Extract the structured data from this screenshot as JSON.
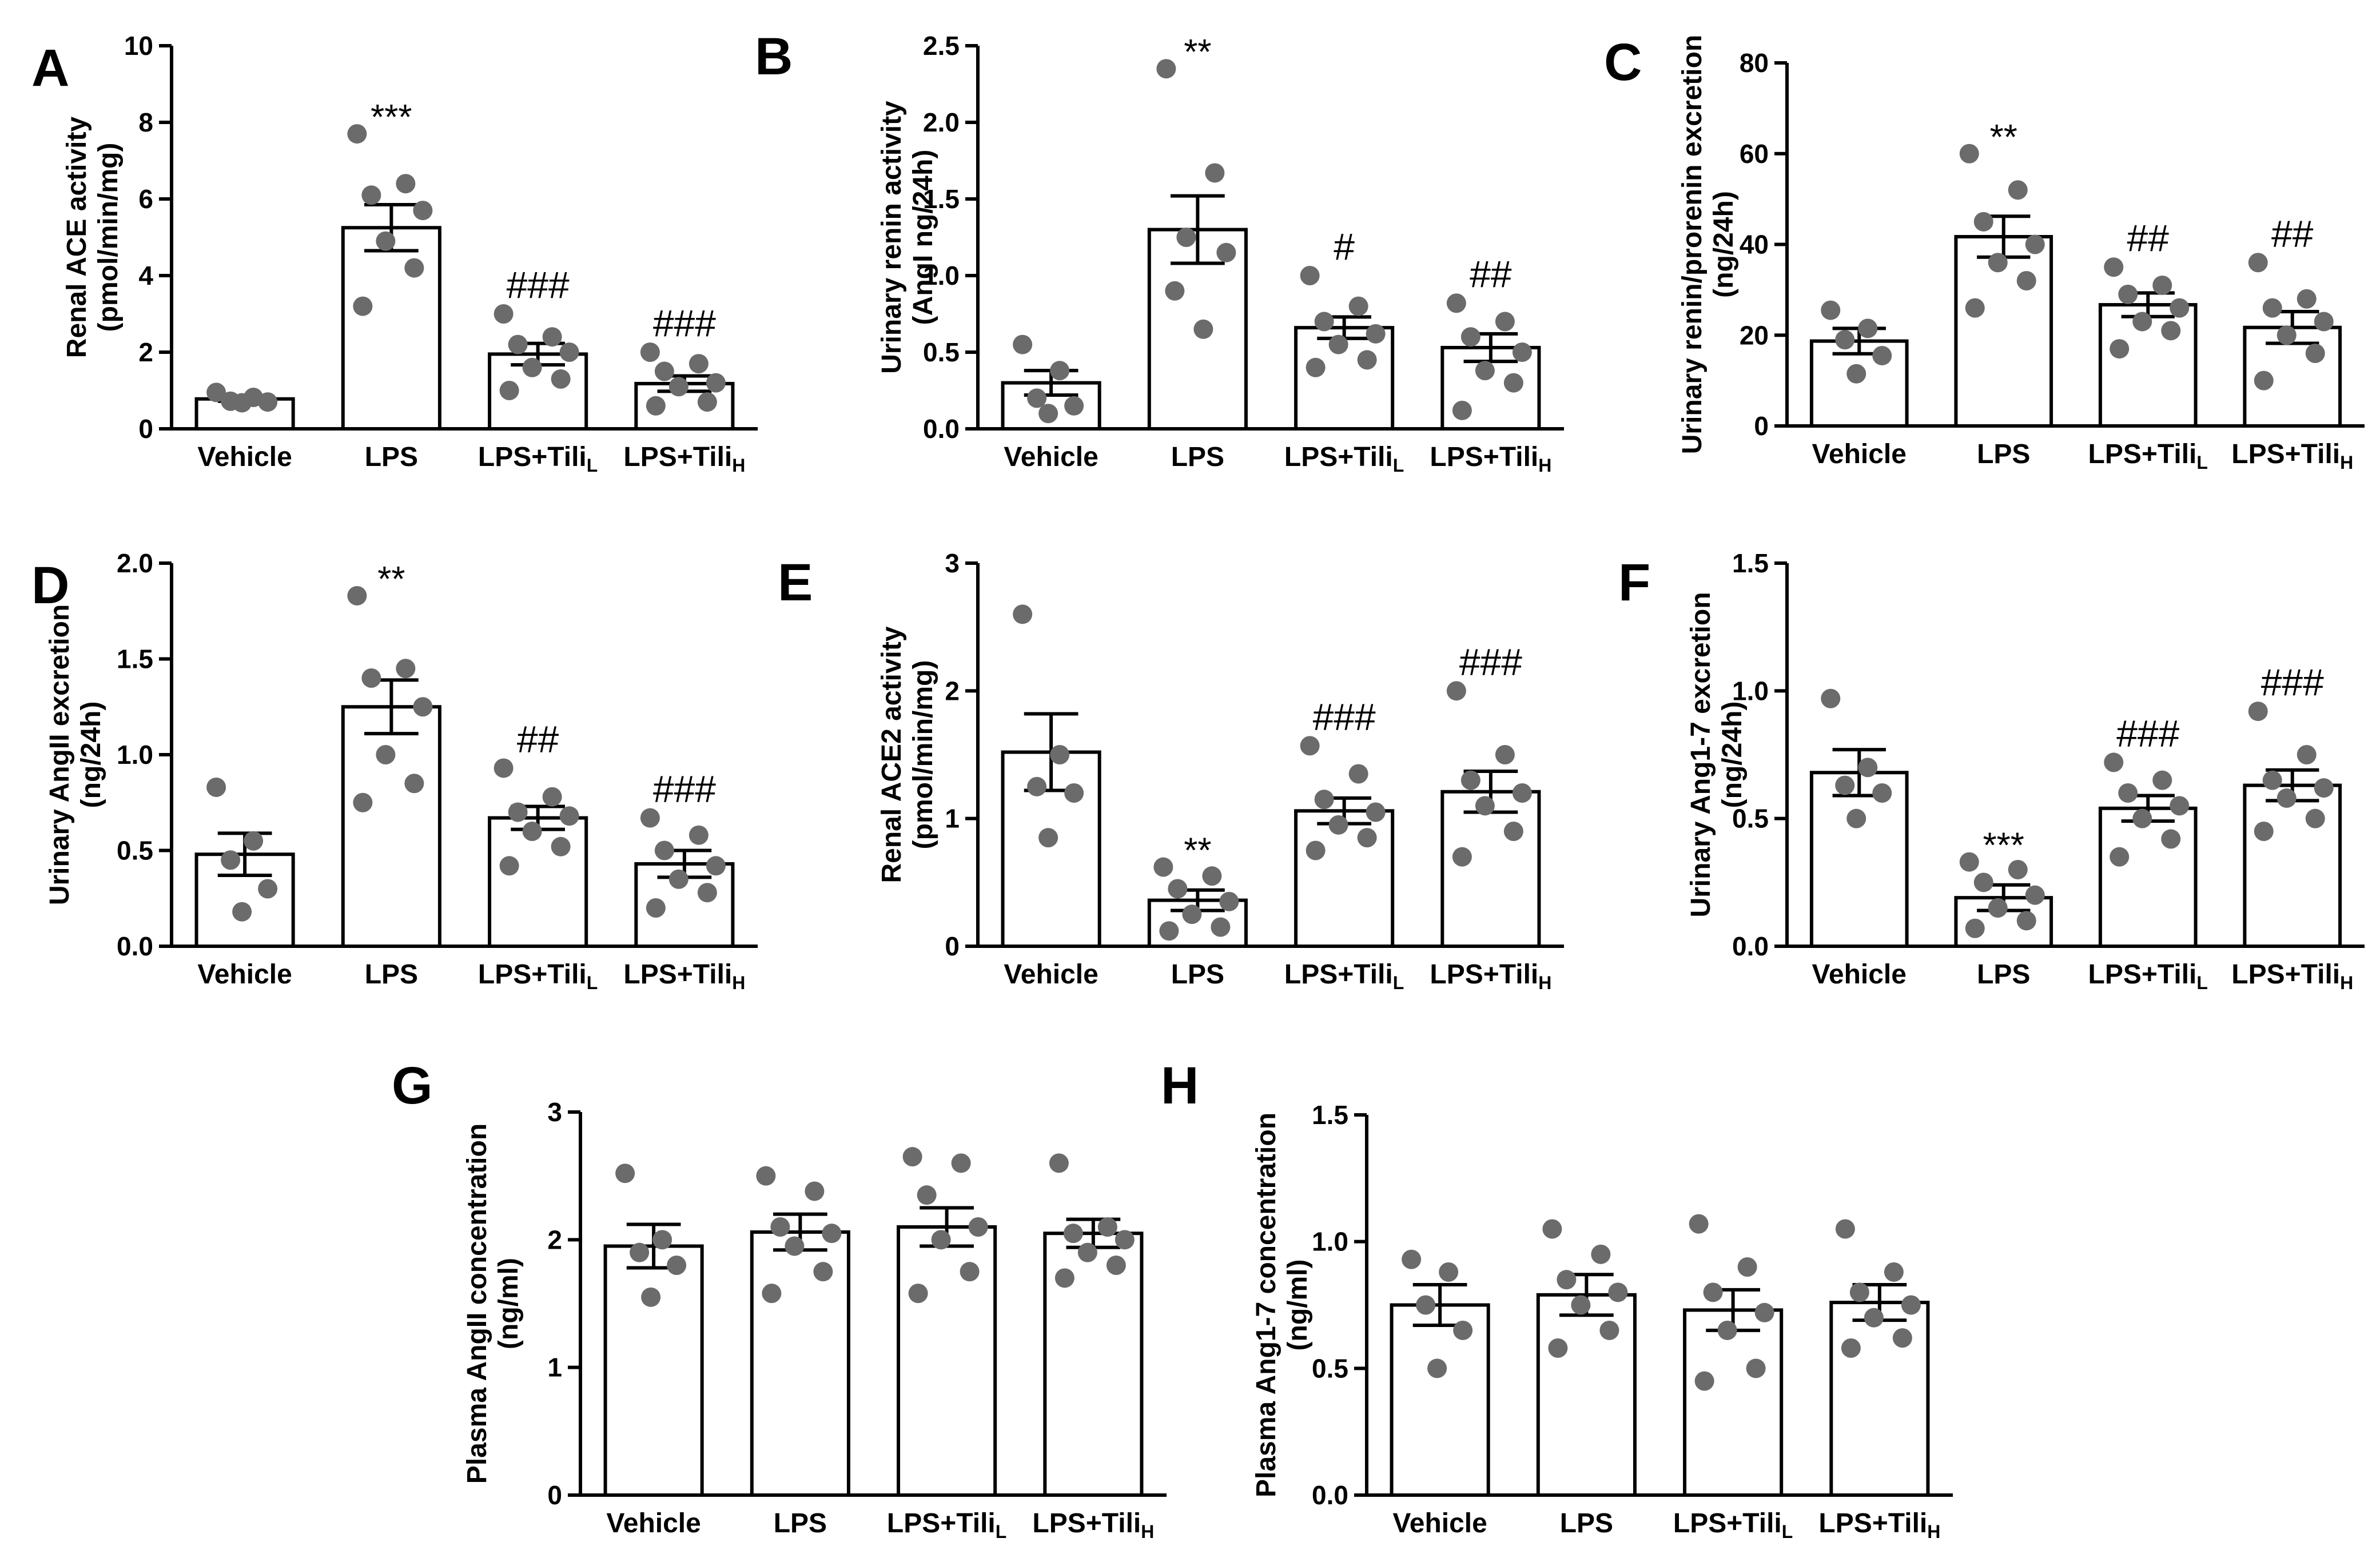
{
  "chart_data": [
    {
      "panel": "A",
      "type": "bar",
      "ylabel_lines": [
        "Renal ACE activity",
        "(pmol/min/mg)"
      ],
      "ylim": [
        0,
        10
      ],
      "yticks": [
        0,
        2,
        4,
        6,
        8,
        10
      ],
      "tick_labels": [
        "0",
        "2",
        "4",
        "6",
        "8",
        "10"
      ],
      "categories": [
        {
          "main": "Vehicle",
          "sub": ""
        },
        {
          "main": "LPS",
          "sub": ""
        },
        {
          "main": "LPS+Tili",
          "sub": "L"
        },
        {
          "main": "LPS+Tili",
          "sub": "H"
        }
      ],
      "values": [
        0.78,
        5.25,
        1.95,
        1.18
      ],
      "errors": [
        0.06,
        0.6,
        0.28,
        0.2
      ],
      "points": [
        [
          0.95,
          0.82,
          0.72,
          0.7,
          0.68
        ],
        [
          7.7,
          6.4,
          6.1,
          5.7,
          4.9,
          4.2,
          3.2
        ],
        [
          3.0,
          2.4,
          2.2,
          2.0,
          1.6,
          1.3,
          1.0
        ],
        [
          2.0,
          1.7,
          1.5,
          1.2,
          1.1,
          0.7,
          0.6
        ]
      ],
      "sig": [
        "",
        "***",
        "###",
        "###"
      ]
    },
    {
      "panel": "B",
      "type": "bar",
      "ylabel_lines": [
        "Urinary renin activity",
        "(AngI ng/24h)"
      ],
      "ylim": [
        0,
        2.5
      ],
      "yticks": [
        0,
        0.5,
        1.0,
        1.5,
        2.0,
        2.5
      ],
      "tick_labels": [
        "0.0",
        "0.5",
        "1.0",
        "1.5",
        "2.0",
        "2.5"
      ],
      "categories": [
        {
          "main": "Vehicle",
          "sub": ""
        },
        {
          "main": "LPS",
          "sub": ""
        },
        {
          "main": "LPS+Tili",
          "sub": "L"
        },
        {
          "main": "LPS+Tili",
          "sub": "H"
        }
      ],
      "values": [
        0.3,
        1.3,
        0.66,
        0.53
      ],
      "errors": [
        0.08,
        0.22,
        0.07,
        0.09
      ],
      "points": [
        [
          0.55,
          0.38,
          0.2,
          0.15,
          0.1
        ],
        [
          2.35,
          1.67,
          1.25,
          1.15,
          0.9,
          0.65
        ],
        [
          1.0,
          0.8,
          0.7,
          0.62,
          0.55,
          0.45,
          0.4
        ],
        [
          0.82,
          0.7,
          0.6,
          0.5,
          0.38,
          0.3,
          0.12
        ]
      ],
      "sig": [
        "",
        "**",
        "#",
        "##"
      ]
    },
    {
      "panel": "C",
      "type": "bar",
      "ylabel_lines": [
        "Urinary renin/prorenin excretion",
        "(ng/24h)"
      ],
      "ylim": [
        0,
        80
      ],
      "yticks": [
        0,
        20,
        40,
        60,
        80
      ],
      "tick_labels": [
        "0",
        "20",
        "40",
        "60",
        "80"
      ],
      "categories": [
        {
          "main": "Vehicle",
          "sub": ""
        },
        {
          "main": "LPS",
          "sub": ""
        },
        {
          "main": "LPS+Tili",
          "sub": "L"
        },
        {
          "main": "LPS+Tili",
          "sub": "H"
        }
      ],
      "values": [
        18.7,
        41.7,
        26.7,
        21.7
      ],
      "errors": [
        2.8,
        4.5,
        2.6,
        3.5
      ],
      "points": [
        [
          25.5,
          21.5,
          19,
          15.5,
          11.5
        ],
        [
          60,
          52,
          45,
          40,
          36,
          32,
          26
        ],
        [
          35,
          31,
          29,
          26,
          23,
          21,
          17
        ],
        [
          36,
          28,
          26,
          23,
          20,
          16,
          10
        ]
      ],
      "sig": [
        "",
        "**",
        "##",
        "##"
      ]
    },
    {
      "panel": "D",
      "type": "bar",
      "ylabel_lines": [
        "Urinary AngII excretion",
        "(ng/24h)"
      ],
      "ylim": [
        0,
        2.0
      ],
      "yticks": [
        0,
        0.5,
        1.0,
        1.5,
        2.0
      ],
      "tick_labels": [
        "0.0",
        "0.5",
        "1.0",
        "1.5",
        "2.0"
      ],
      "categories": [
        {
          "main": "Vehicle",
          "sub": ""
        },
        {
          "main": "LPS",
          "sub": ""
        },
        {
          "main": "LPS+Tili",
          "sub": "L"
        },
        {
          "main": "LPS+Tili",
          "sub": "H"
        }
      ],
      "values": [
        0.48,
        1.25,
        0.67,
        0.43
      ],
      "errors": [
        0.11,
        0.14,
        0.06,
        0.07
      ],
      "points": [
        [
          0.83,
          0.55,
          0.45,
          0.3,
          0.18
        ],
        [
          1.83,
          1.45,
          1.4,
          1.25,
          1.0,
          0.85,
          0.75
        ],
        [
          0.93,
          0.78,
          0.7,
          0.68,
          0.6,
          0.52,
          0.42
        ],
        [
          0.67,
          0.58,
          0.5,
          0.42,
          0.35,
          0.28,
          0.2
        ]
      ],
      "sig": [
        "",
        "**",
        "##",
        "###"
      ]
    },
    {
      "panel": "E",
      "type": "bar",
      "ylabel_lines": [
        "Renal ACE2 activity",
        "(pmol/min/mg)"
      ],
      "ylim": [
        0,
        3
      ],
      "yticks": [
        0,
        1,
        2,
        3
      ],
      "tick_labels": [
        "0",
        "1",
        "2",
        "3"
      ],
      "categories": [
        {
          "main": "Vehicle",
          "sub": ""
        },
        {
          "main": "LPS",
          "sub": ""
        },
        {
          "main": "LPS+Tili",
          "sub": "L"
        },
        {
          "main": "LPS+Tili",
          "sub": "H"
        }
      ],
      "values": [
        1.52,
        0.36,
        1.06,
        1.21
      ],
      "errors": [
        0.3,
        0.08,
        0.1,
        0.16
      ],
      "points": [
        [
          2.6,
          1.5,
          1.25,
          1.2,
          0.85
        ],
        [
          0.62,
          0.55,
          0.45,
          0.35,
          0.25,
          0.15,
          0.12
        ],
        [
          1.57,
          1.35,
          1.15,
          1.05,
          0.95,
          0.85,
          0.75
        ],
        [
          2.0,
          1.5,
          1.3,
          1.2,
          1.1,
          0.9,
          0.7
        ]
      ],
      "sig": [
        "",
        "**",
        "###",
        "###"
      ]
    },
    {
      "panel": "F",
      "type": "bar",
      "ylabel_lines": [
        "Urinary Ang1-7 excretion",
        "(ng/24h)"
      ],
      "ylim": [
        0,
        1.5
      ],
      "yticks": [
        0,
        0.5,
        1.0,
        1.5
      ],
      "tick_labels": [
        "0.0",
        "0.5",
        "1.0",
        "1.5"
      ],
      "categories": [
        {
          "main": "Vehicle",
          "sub": ""
        },
        {
          "main": "LPS",
          "sub": ""
        },
        {
          "main": "LPS+Tili",
          "sub": "L"
        },
        {
          "main": "LPS+Tili",
          "sub": "H"
        }
      ],
      "values": [
        0.68,
        0.19,
        0.54,
        0.63
      ],
      "errors": [
        0.09,
        0.05,
        0.05,
        0.06
      ],
      "points": [
        [
          0.97,
          0.7,
          0.63,
          0.6,
          0.5
        ],
        [
          0.33,
          0.3,
          0.25,
          0.2,
          0.15,
          0.1,
          0.07
        ],
        [
          0.72,
          0.65,
          0.6,
          0.55,
          0.5,
          0.42,
          0.35
        ],
        [
          0.92,
          0.75,
          0.65,
          0.62,
          0.58,
          0.5,
          0.45
        ]
      ],
      "sig": [
        "",
        "***",
        "###",
        "###"
      ]
    },
    {
      "panel": "G",
      "type": "bar",
      "ylabel_lines": [
        "Plasma AngII concentration",
        "(ng/ml)"
      ],
      "ylim": [
        0,
        3
      ],
      "yticks": [
        0,
        1,
        2,
        3
      ],
      "tick_labels": [
        "0",
        "1",
        "2",
        "3"
      ],
      "categories": [
        {
          "main": "Vehicle",
          "sub": ""
        },
        {
          "main": "LPS",
          "sub": ""
        },
        {
          "main": "LPS+Tili",
          "sub": "L"
        },
        {
          "main": "LPS+Tili",
          "sub": "H"
        }
      ],
      "values": [
        1.95,
        2.06,
        2.1,
        2.05
      ],
      "errors": [
        0.17,
        0.14,
        0.15,
        0.11
      ],
      "points": [
        [
          2.52,
          2.0,
          1.9,
          1.8,
          1.55
        ],
        [
          2.5,
          2.38,
          2.1,
          2.05,
          1.95,
          1.75,
          1.58
        ],
        [
          2.65,
          2.6,
          2.35,
          2.1,
          2.0,
          1.75,
          1.58
        ],
        [
          2.6,
          2.1,
          2.05,
          2.0,
          1.9,
          1.8,
          1.7
        ]
      ],
      "sig": [
        "",
        "",
        "",
        ""
      ]
    },
    {
      "panel": "H",
      "type": "bar",
      "ylabel_lines": [
        "Plasma Ang1-7 concentration",
        "(ng/ml)"
      ],
      "ylim": [
        0,
        1.5
      ],
      "yticks": [
        0,
        0.5,
        1.0,
        1.5
      ],
      "tick_labels": [
        "0.0",
        "0.5",
        "1.0",
        "1.5"
      ],
      "categories": [
        {
          "main": "Vehicle",
          "sub": ""
        },
        {
          "main": "LPS",
          "sub": ""
        },
        {
          "main": "LPS+Tili",
          "sub": "L"
        },
        {
          "main": "LPS+Tili",
          "sub": "H"
        }
      ],
      "values": [
        0.75,
        0.79,
        0.73,
        0.76
      ],
      "errors": [
        0.08,
        0.08,
        0.08,
        0.07
      ],
      "points": [
        [
          0.93,
          0.88,
          0.75,
          0.65,
          0.5
        ],
        [
          1.05,
          0.95,
          0.85,
          0.8,
          0.75,
          0.65,
          0.58
        ],
        [
          1.07,
          0.9,
          0.8,
          0.72,
          0.65,
          0.5,
          0.45
        ],
        [
          1.05,
          0.88,
          0.8,
          0.75,
          0.7,
          0.62,
          0.58
        ]
      ],
      "sig": [
        "",
        "",
        "",
        ""
      ]
    }
  ]
}
